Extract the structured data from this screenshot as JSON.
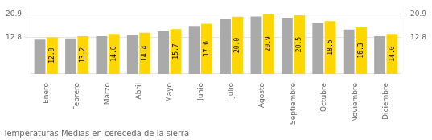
{
  "chart_data": {
    "type": "bar",
    "title": "Temperaturas Medias en cereceda de la sierra",
    "categories": [
      "Enero",
      "Febrero",
      "Marzo",
      "Abril",
      "Mayo",
      "Junio",
      "Julio",
      "Agosto",
      "Septiembre",
      "Octubre",
      "Noviembre",
      "Diciembre"
    ],
    "series": [
      {
        "color": "#AAAAAA",
        "values": [
          12.0,
          12.4,
          13.2,
          13.6,
          14.9,
          16.8,
          19.2,
          20.1,
          19.7,
          17.7,
          15.5,
          13.2
        ]
      },
      {
        "color": "#FFD700",
        "values": [
          12.8,
          13.2,
          14.0,
          14.4,
          15.7,
          17.6,
          20.0,
          20.9,
          20.5,
          18.5,
          16.3,
          14.0
        ],
        "data_labels": true,
        "value_labels": [
          "12.8",
          "13.2",
          "14.0",
          "14.4",
          "15.7",
          "17.6",
          "20.0",
          "20.9",
          "20.5",
          "18.5",
          "16.3",
          "14.0"
        ]
      }
    ],
    "ylim": [
      0,
      23.5
    ],
    "yticks": [
      12.8,
      20.9
    ],
    "y2lim": [
      0,
      23.5
    ],
    "y2ticks": [
      12.8,
      20.9
    ],
    "grid": true
  }
}
